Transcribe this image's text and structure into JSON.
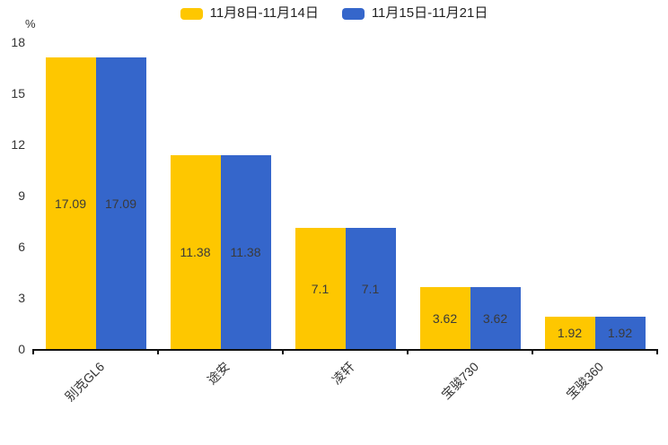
{
  "chart_data": {
    "type": "bar",
    "title": "",
    "categories": [
      "别克GL6",
      "途安",
      "凌轩",
      "宝骏730",
      "宝骏360"
    ],
    "series": [
      {
        "name": "11月8日-11月14日",
        "color": "#FEC700",
        "values": [
          17.09,
          11.38,
          7.1,
          3.62,
          1.92
        ]
      },
      {
        "name": "11月15日-11月21日",
        "color": "#3566CB",
        "values": [
          17.09,
          11.38,
          7.1,
          3.62,
          1.92
        ]
      }
    ],
    "y_axis": {
      "label": "%",
      "min": 0,
      "max": 18,
      "ticks": [
        0,
        3,
        6,
        9,
        12,
        15,
        18
      ]
    },
    "grid": false,
    "legend_position": "top",
    "value_labels": "inside-center",
    "category_label_rotation_deg": -45
  }
}
